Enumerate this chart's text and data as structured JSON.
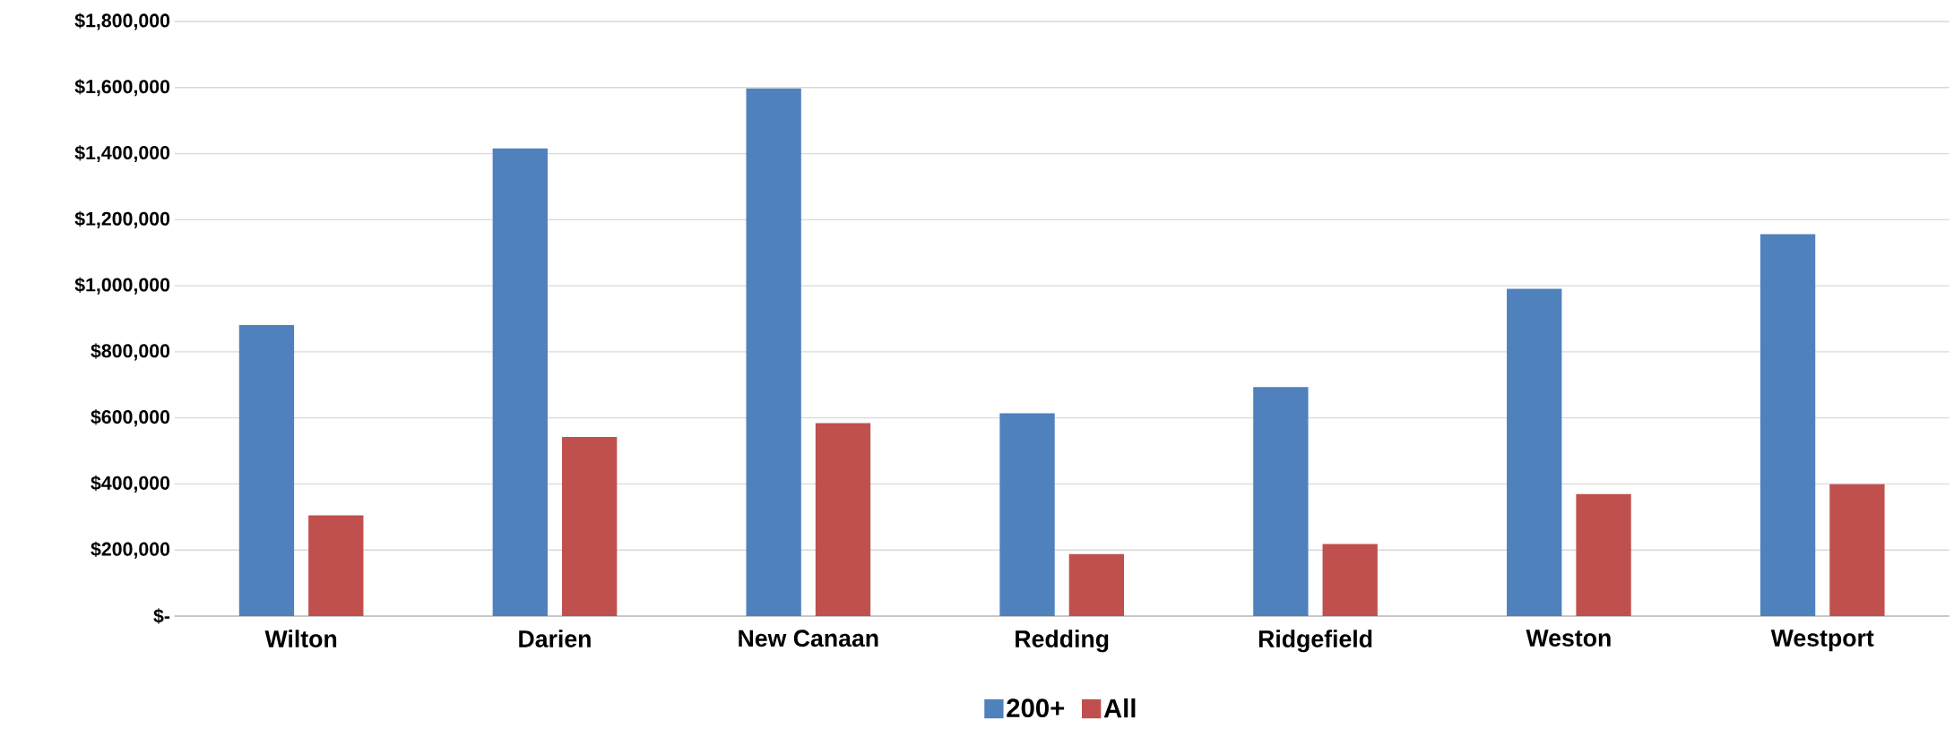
{
  "chart_data": {
    "type": "bar",
    "categories": [
      "Wilton",
      "Darien",
      "New Canaan",
      "Redding",
      "Ridgefield",
      "Weston",
      "Westport"
    ],
    "series": [
      {
        "name": "200+",
        "color": "#4f81bd",
        "values": [
          881000,
          1416000,
          1597000,
          614000,
          693000,
          991000,
          1156000
        ]
      },
      {
        "name": "All",
        "color": "#c0504d",
        "values": [
          305000,
          542000,
          584000,
          188000,
          218000,
          369000,
          399000
        ]
      }
    ],
    "ylim": [
      0,
      1800000
    ],
    "yticks": [
      {
        "value": 0,
        "label": "$-"
      },
      {
        "value": 200000,
        "label": "$200,000"
      },
      {
        "value": 400000,
        "label": "$400,000"
      },
      {
        "value": 600000,
        "label": "$600,000"
      },
      {
        "value": 800000,
        "label": "$800,000"
      },
      {
        "value": 1000000,
        "label": "$1,000,000"
      },
      {
        "value": 1200000,
        "label": "$1,200,000"
      },
      {
        "value": 1400000,
        "label": "$1,400,000"
      },
      {
        "value": 1600000,
        "label": "$1,600,000"
      },
      {
        "value": 1800000,
        "label": "$1,800,000"
      }
    ],
    "grid": "y",
    "legend": "bottom"
  }
}
